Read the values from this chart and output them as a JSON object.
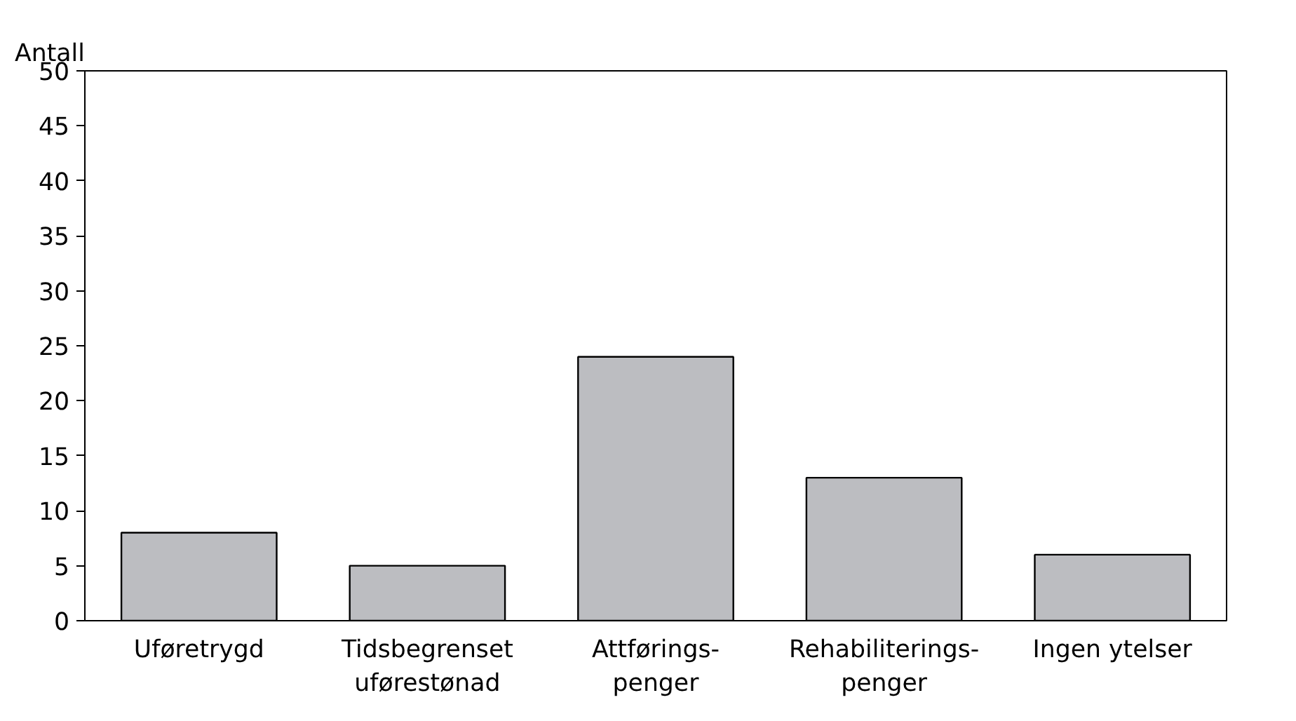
{
  "chart_data": {
    "type": "bar",
    "ylabel": "Antall",
    "categories": [
      "Uføretrygd",
      "Tidsbegrenset\nuførestønad",
      "Attførings-\npenger",
      "Rehabiliterings-\npenger",
      "Ingen ytelser"
    ],
    "values": [
      8,
      5,
      24,
      13,
      6
    ],
    "color": "#bcbdc1",
    "ylim": [
      0,
      50
    ],
    "yticks": [
      0,
      5,
      10,
      15,
      20,
      25,
      30,
      35,
      40,
      45,
      50
    ],
    "grid": false
  }
}
